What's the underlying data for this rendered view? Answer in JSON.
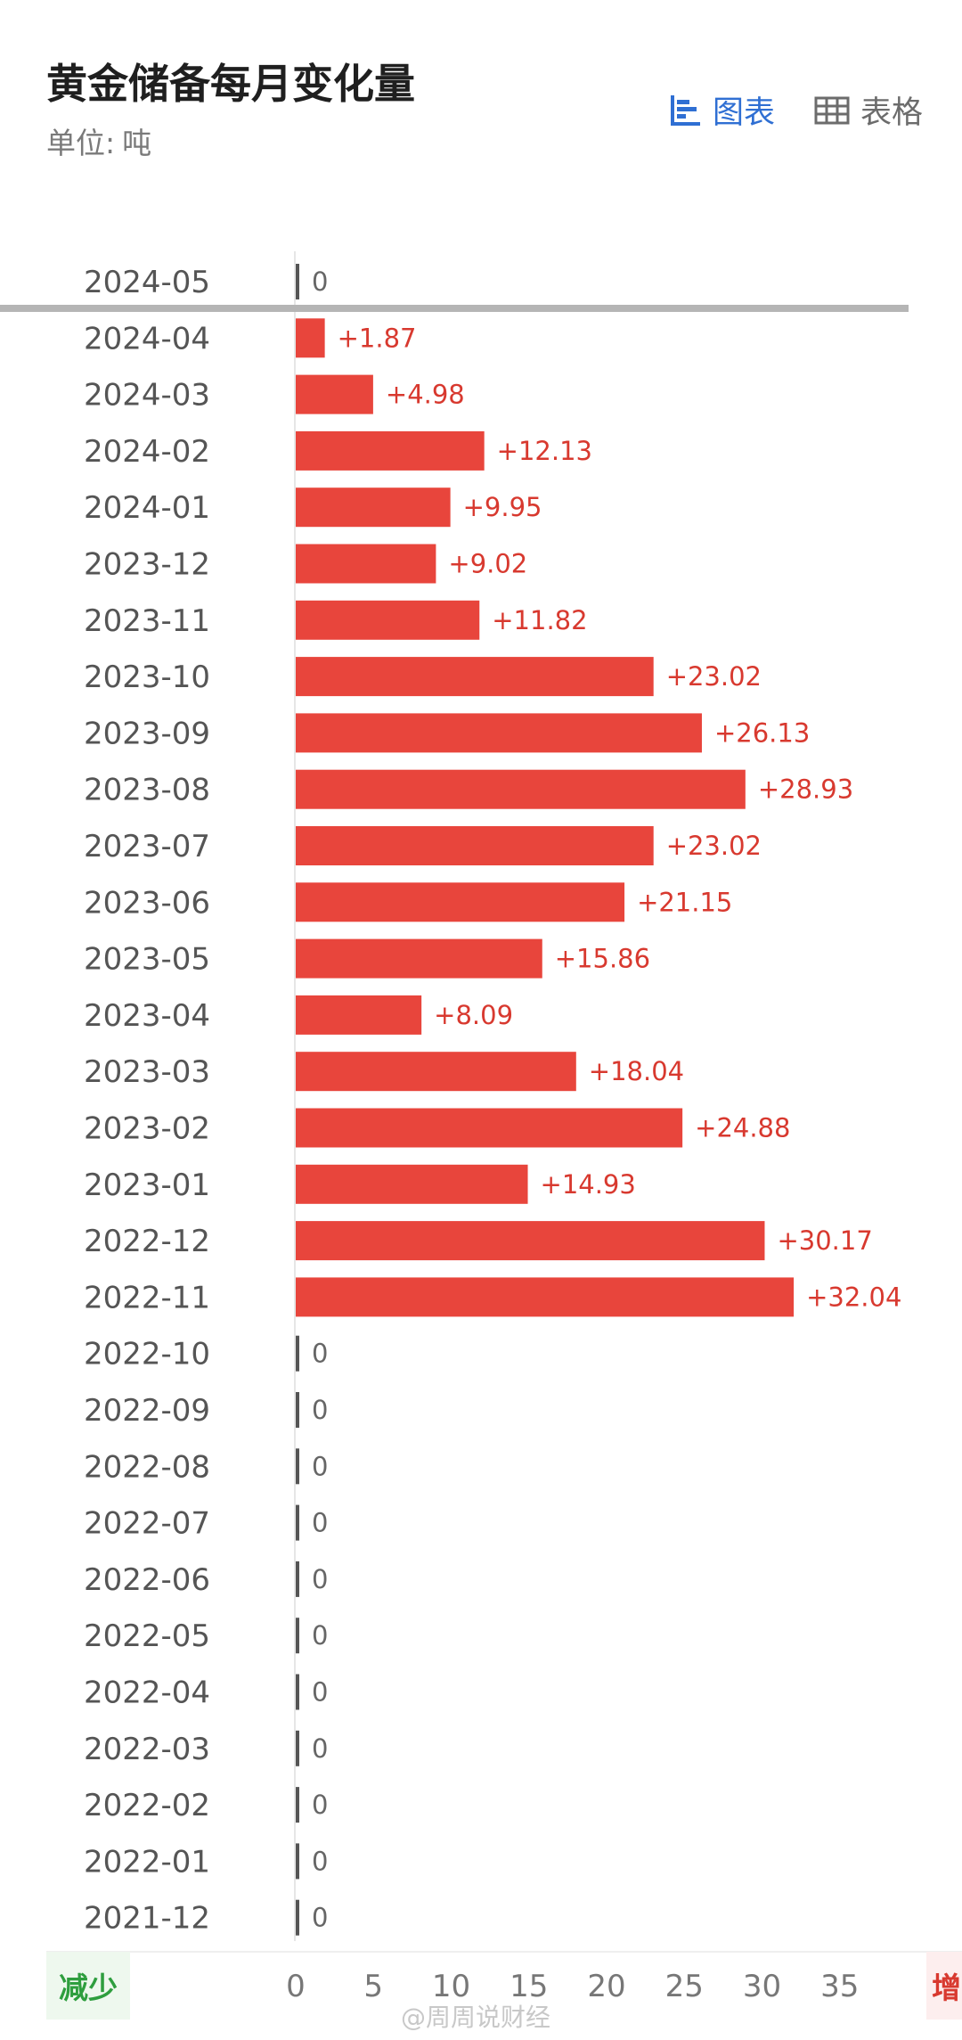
{
  "header": {
    "title": "黄金储备每月变化量",
    "unit_label": "单位:",
    "unit_value": "吨"
  },
  "tabs": [
    {
      "label": "图表",
      "icon": "bar-chart-icon",
      "active": true
    },
    {
      "label": "表格",
      "icon": "table-grid-icon",
      "active": false
    }
  ],
  "footer": {
    "decrease_label": "减少",
    "increase_label": "增",
    "watermark": "@周周说财经"
  },
  "colors": {
    "bar": "#e8453c",
    "label": "#d8392f",
    "zero": "#555555",
    "active_tab": "#2f6fd3"
  },
  "chart_data": {
    "type": "bar",
    "orientation": "horizontal",
    "categories": [
      "2024-05",
      "2024-04",
      "2024-03",
      "2024-02",
      "2024-01",
      "2023-12",
      "2023-11",
      "2023-10",
      "2023-09",
      "2023-08",
      "2023-07",
      "2023-06",
      "2023-05",
      "2023-04",
      "2023-03",
      "2023-02",
      "2023-01",
      "2022-12",
      "2022-11",
      "2022-10",
      "2022-09",
      "2022-08",
      "2022-07",
      "2022-06",
      "2022-05",
      "2022-04",
      "2022-03",
      "2022-02",
      "2022-01",
      "2021-12"
    ],
    "values": [
      0,
      1.87,
      4.98,
      12.13,
      9.95,
      9.02,
      11.82,
      23.02,
      26.13,
      28.93,
      23.02,
      21.15,
      15.86,
      8.09,
      18.04,
      24.88,
      14.93,
      30.17,
      32.04,
      0,
      0,
      0,
      0,
      0,
      0,
      0,
      0,
      0,
      0,
      0
    ],
    "value_labels": [
      "0",
      "+1.87",
      "+4.98",
      "+12.13",
      "+9.95",
      "+9.02",
      "+11.82",
      "+23.02",
      "+26.13",
      "+28.93",
      "+23.02",
      "+21.15",
      "+15.86",
      "+8.09",
      "+18.04",
      "+24.88",
      "+14.93",
      "+30.17",
      "+32.04",
      "0",
      "0",
      "0",
      "0",
      "0",
      "0",
      "0",
      "0",
      "0",
      "0",
      "0"
    ],
    "x_ticks": [
      "0",
      "5",
      "10",
      "15",
      "20",
      "25",
      "30",
      "35"
    ],
    "xlim": [
      0,
      35
    ],
    "grid": false,
    "legend": "none"
  }
}
